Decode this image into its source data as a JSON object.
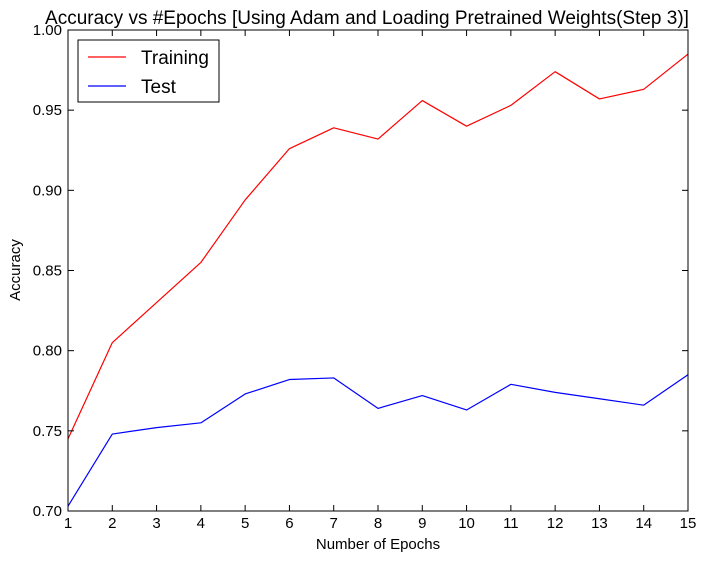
{
  "chart_data": {
    "type": "line",
    "title": "Accuracy vs #Epochs [Using Adam and Loading Pretrained Weights(Step 3)]",
    "xlabel": "Number of Epochs",
    "ylabel": "Accuracy",
    "xlim": [
      1,
      15
    ],
    "ylim": [
      0.7,
      1.0
    ],
    "x_ticks": [
      1,
      2,
      3,
      4,
      5,
      6,
      7,
      8,
      9,
      10,
      11,
      12,
      13,
      14,
      15
    ],
    "y_ticks": [
      0.7,
      0.75,
      0.8,
      0.85,
      0.9,
      0.95,
      1.0
    ],
    "y_tick_labels": [
      "0.70",
      "0.75",
      "0.80",
      "0.85",
      "0.90",
      "0.95",
      "1.00"
    ],
    "grid": false,
    "legend_position": "top-left",
    "x": [
      1,
      2,
      3,
      4,
      5,
      6,
      7,
      8,
      9,
      10,
      11,
      12,
      13,
      14,
      15
    ],
    "series": [
      {
        "name": "Training",
        "color": "#ff0000",
        "values": [
          0.745,
          0.805,
          0.83,
          0.855,
          0.894,
          0.926,
          0.939,
          0.932,
          0.956,
          0.94,
          0.953,
          0.974,
          0.957,
          0.963,
          0.985
        ]
      },
      {
        "name": "Test",
        "color": "#0000ff",
        "values": [
          0.703,
          0.748,
          0.752,
          0.755,
          0.773,
          0.782,
          0.783,
          0.764,
          0.772,
          0.763,
          0.779,
          0.774,
          0.77,
          0.766,
          0.785
        ]
      }
    ]
  }
}
